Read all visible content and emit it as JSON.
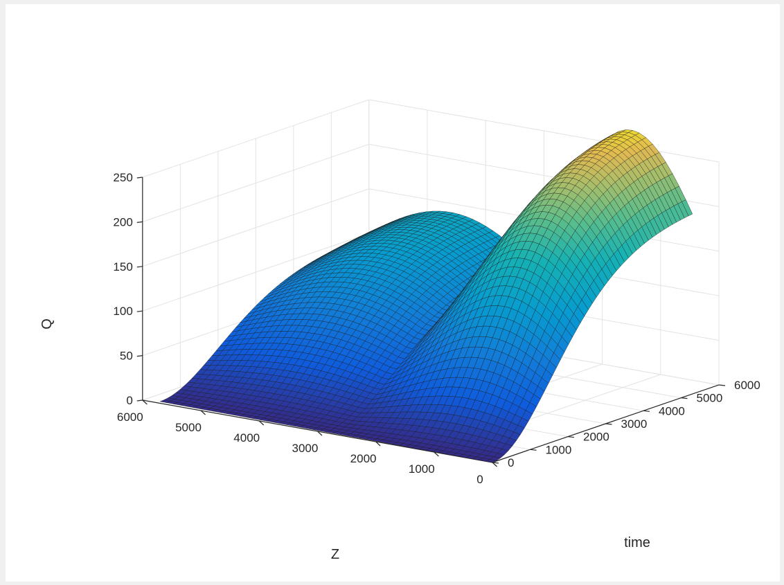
{
  "chart_data": {
    "type": "surface",
    "xlabel": "Z",
    "ylabel": "time",
    "zlabel": "Q",
    "x_ticks": [
      0,
      1000,
      2000,
      3000,
      4000,
      5000,
      6000
    ],
    "y_ticks": [
      0,
      1000,
      2000,
      3000,
      4000,
      5000,
      6000
    ],
    "z_ticks": [
      0,
      50,
      100,
      150,
      200,
      250
    ],
    "xlim": [
      0,
      6000
    ],
    "ylim": [
      0,
      6000
    ],
    "zlim": [
      0,
      250
    ],
    "grid": true,
    "colormap": "parula",
    "mesh_lines": true,
    "surface_extent": {
      "z_range": [
        0,
        5700
      ],
      "time_range": [
        0,
        5300
      ]
    },
    "corner_values": [
      {
        "z": 0,
        "time": 0,
        "q": 0
      },
      {
        "z": 5700,
        "time": 0,
        "q": 2
      },
      {
        "z": 5700,
        "time": 5300,
        "q": 245
      },
      {
        "z": 0,
        "time": 5300,
        "q": 116
      }
    ],
    "peak": {
      "z": 1100,
      "time": 5300,
      "q": 300
    }
  }
}
